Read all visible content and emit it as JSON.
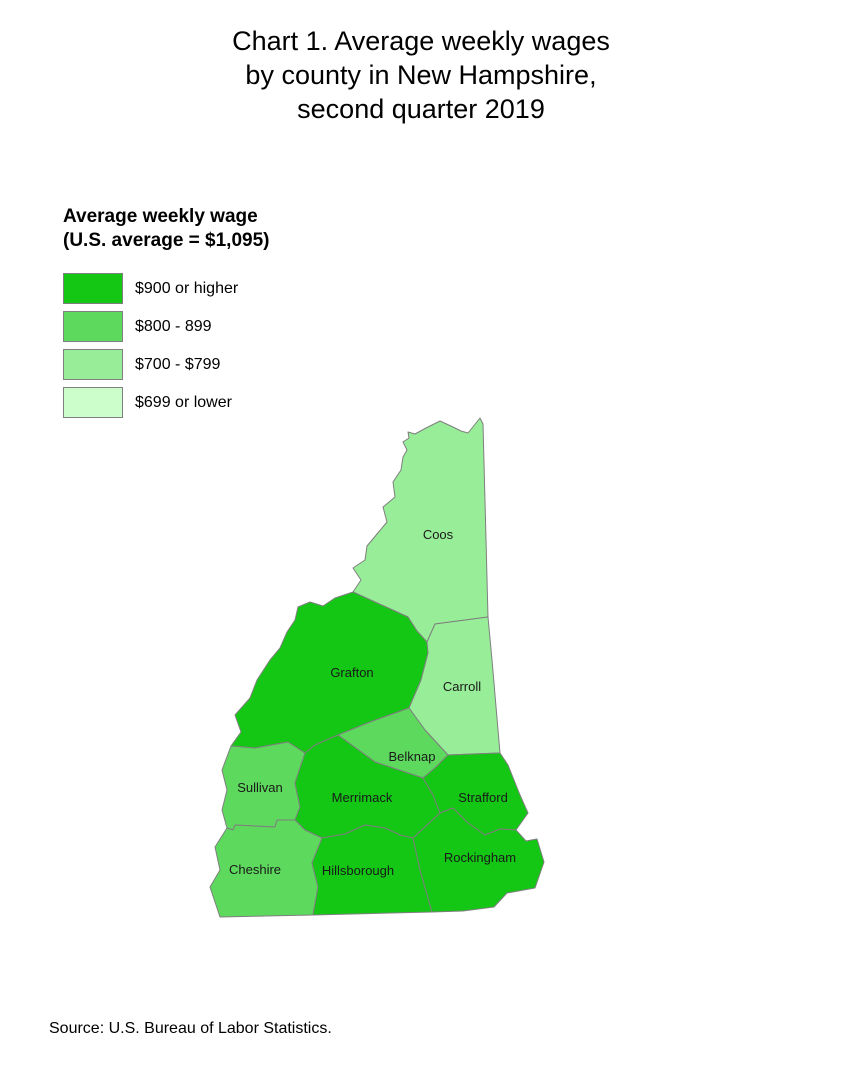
{
  "title": {
    "lines": [
      "Chart 1. Average weekly wages",
      "by county in New Hampshire,",
      "second quarter 2019"
    ]
  },
  "legend": {
    "title_line1": "Average weekly wage",
    "title_line2": "(U.S. average = $1,095)",
    "items": [
      {
        "label": "$900 or higher",
        "color": "#14C714"
      },
      {
        "label": "$800 - 899",
        "color": "#5DD95D"
      },
      {
        "label": "$700 - $799",
        "color": "#98EE98"
      },
      {
        "label": "$699 or lower",
        "color": "#CCFECC"
      }
    ]
  },
  "map": {
    "border_color": "#7F7F7F",
    "label_color": "#1a1a1a",
    "counties": [
      {
        "name": "Coos",
        "bucket": "$700 - $799",
        "color": "#98EE98"
      },
      {
        "name": "Grafton",
        "bucket": "$900 or higher",
        "color": "#14C714"
      },
      {
        "name": "Carroll",
        "bucket": "$700 - $799",
        "color": "#98EE98"
      },
      {
        "name": "Sullivan",
        "bucket": "$800 - 899",
        "color": "#5DD95D"
      },
      {
        "name": "Belknap",
        "bucket": "$800 - 899",
        "color": "#5DD95D"
      },
      {
        "name": "Merrimack",
        "bucket": "$900 or higher",
        "color": "#14C714"
      },
      {
        "name": "Strafford",
        "bucket": "$900 or higher",
        "color": "#14C714"
      },
      {
        "name": "Cheshire",
        "bucket": "$800 - 899",
        "color": "#5DD95D"
      },
      {
        "name": "Hillsborough",
        "bucket": "$900 or higher",
        "color": "#14C714"
      },
      {
        "name": "Rockingham",
        "bucket": "$900 or higher",
        "color": "#14C714"
      }
    ]
  },
  "source": "Source: U.S. Bureau of Labor Statistics.",
  "chart_data": {
    "type": "choropleth",
    "region": "New Hampshire counties",
    "title": "Chart 1. Average weekly wages by county in New Hampshire, second quarter 2019",
    "legend_title": "Average weekly wage (U.S. average = $1,095)",
    "us_average_weekly_wage_usd": 1095,
    "buckets": [
      "$900 or higher",
      "$800 - 899",
      "$700 - $799",
      "$699 or lower"
    ],
    "counties": [
      {
        "name": "Coos",
        "bucket": "$700 - $799"
      },
      {
        "name": "Grafton",
        "bucket": "$900 or higher"
      },
      {
        "name": "Carroll",
        "bucket": "$700 - $799"
      },
      {
        "name": "Sullivan",
        "bucket": "$800 - 899"
      },
      {
        "name": "Belknap",
        "bucket": "$800 - 899"
      },
      {
        "name": "Merrimack",
        "bucket": "$900 or higher"
      },
      {
        "name": "Strafford",
        "bucket": "$900 or higher"
      },
      {
        "name": "Cheshire",
        "bucket": "$800 - 899"
      },
      {
        "name": "Hillsborough",
        "bucket": "$900 or higher"
      },
      {
        "name": "Rockingham",
        "bucket": "$900 or higher"
      }
    ],
    "legend_position": "upper-left",
    "source": "U.S. Bureau of Labor Statistics"
  }
}
